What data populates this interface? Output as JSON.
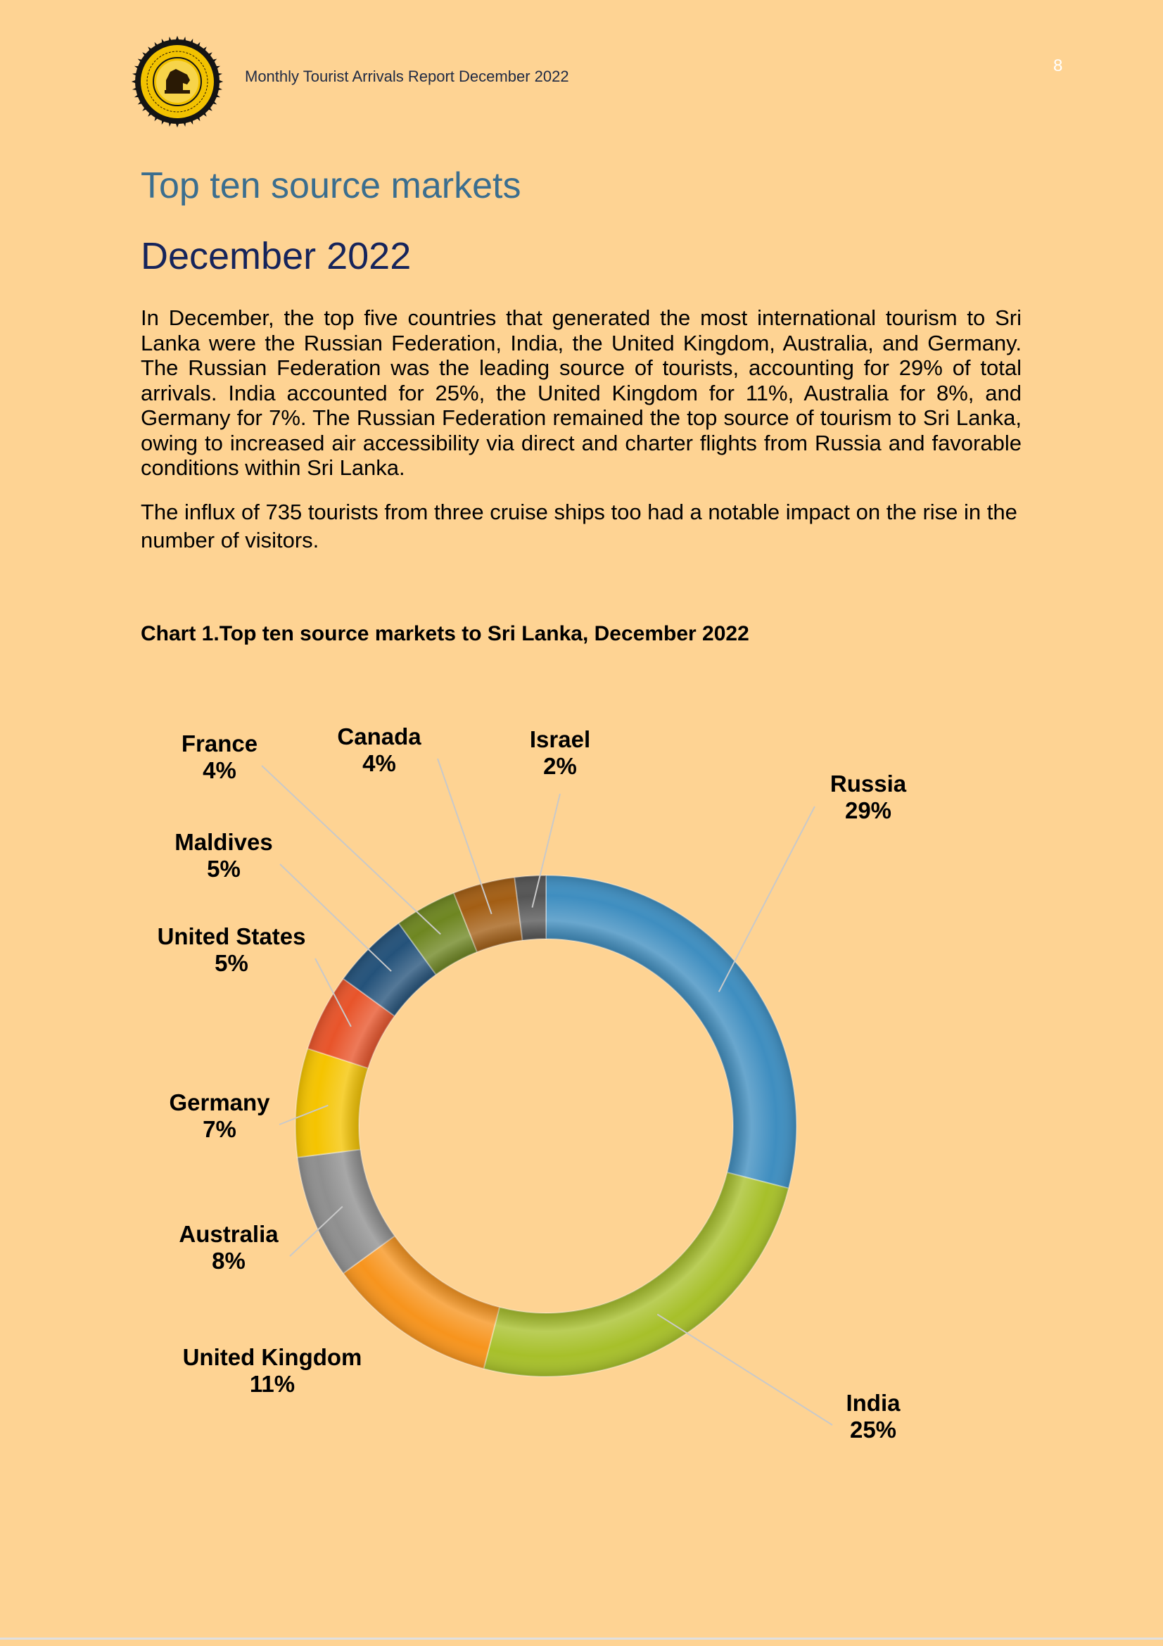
{
  "header": {
    "report_title": "Monthly Tourist Arrivals Report December  2022",
    "page_number": "8"
  },
  "heading": {
    "title": "Top ten source markets",
    "subtitle": "December  2022"
  },
  "body": {
    "paragraph1": "In December, the top five countries that generated the most international tourism to Sri Lanka were the Russian Federation, India, the United Kingdom, Australia, and Germany. The Russian Federation was the leading source of tourists, accounting for 29% of total arrivals. India accounted for 25%, the United Kingdom for 11%, Australia for 8%, and Germany for 7%. The Russian Federation remained the top source of tourism to Sri Lanka, owing to increased air accessibility via direct and charter flights from Russia and favorable conditions within Sri Lanka.",
    "paragraph2": "The influx of 735 tourists from three cruise ships too had a notable impact on the rise in the number of visitors."
  },
  "chart_caption": "Chart 1.Top ten source markets to Sri Lanka, December 2022",
  "chart_data": {
    "type": "pie",
    "variant": "doughnut",
    "title": "",
    "categories": [
      "Russia",
      "India",
      "United Kingdom",
      "Australia",
      "Germany",
      "United States",
      "Maldives",
      "France",
      "Canada",
      "Israel"
    ],
    "values": [
      29,
      25,
      11,
      8,
      7,
      5,
      5,
      4,
      4,
      2
    ],
    "value_labels": [
      "29%",
      "25%",
      "11%",
      "8%",
      "7%",
      "5%",
      "5%",
      "4%",
      "4%",
      "2%"
    ],
    "colors": [
      "#3F8EC0",
      "#A7C02A",
      "#F7941D",
      "#8F8F8F",
      "#F5C400",
      "#E8542A",
      "#24527A",
      "#6E8621",
      "#A35E14",
      "#555555"
    ],
    "legend": "none"
  }
}
